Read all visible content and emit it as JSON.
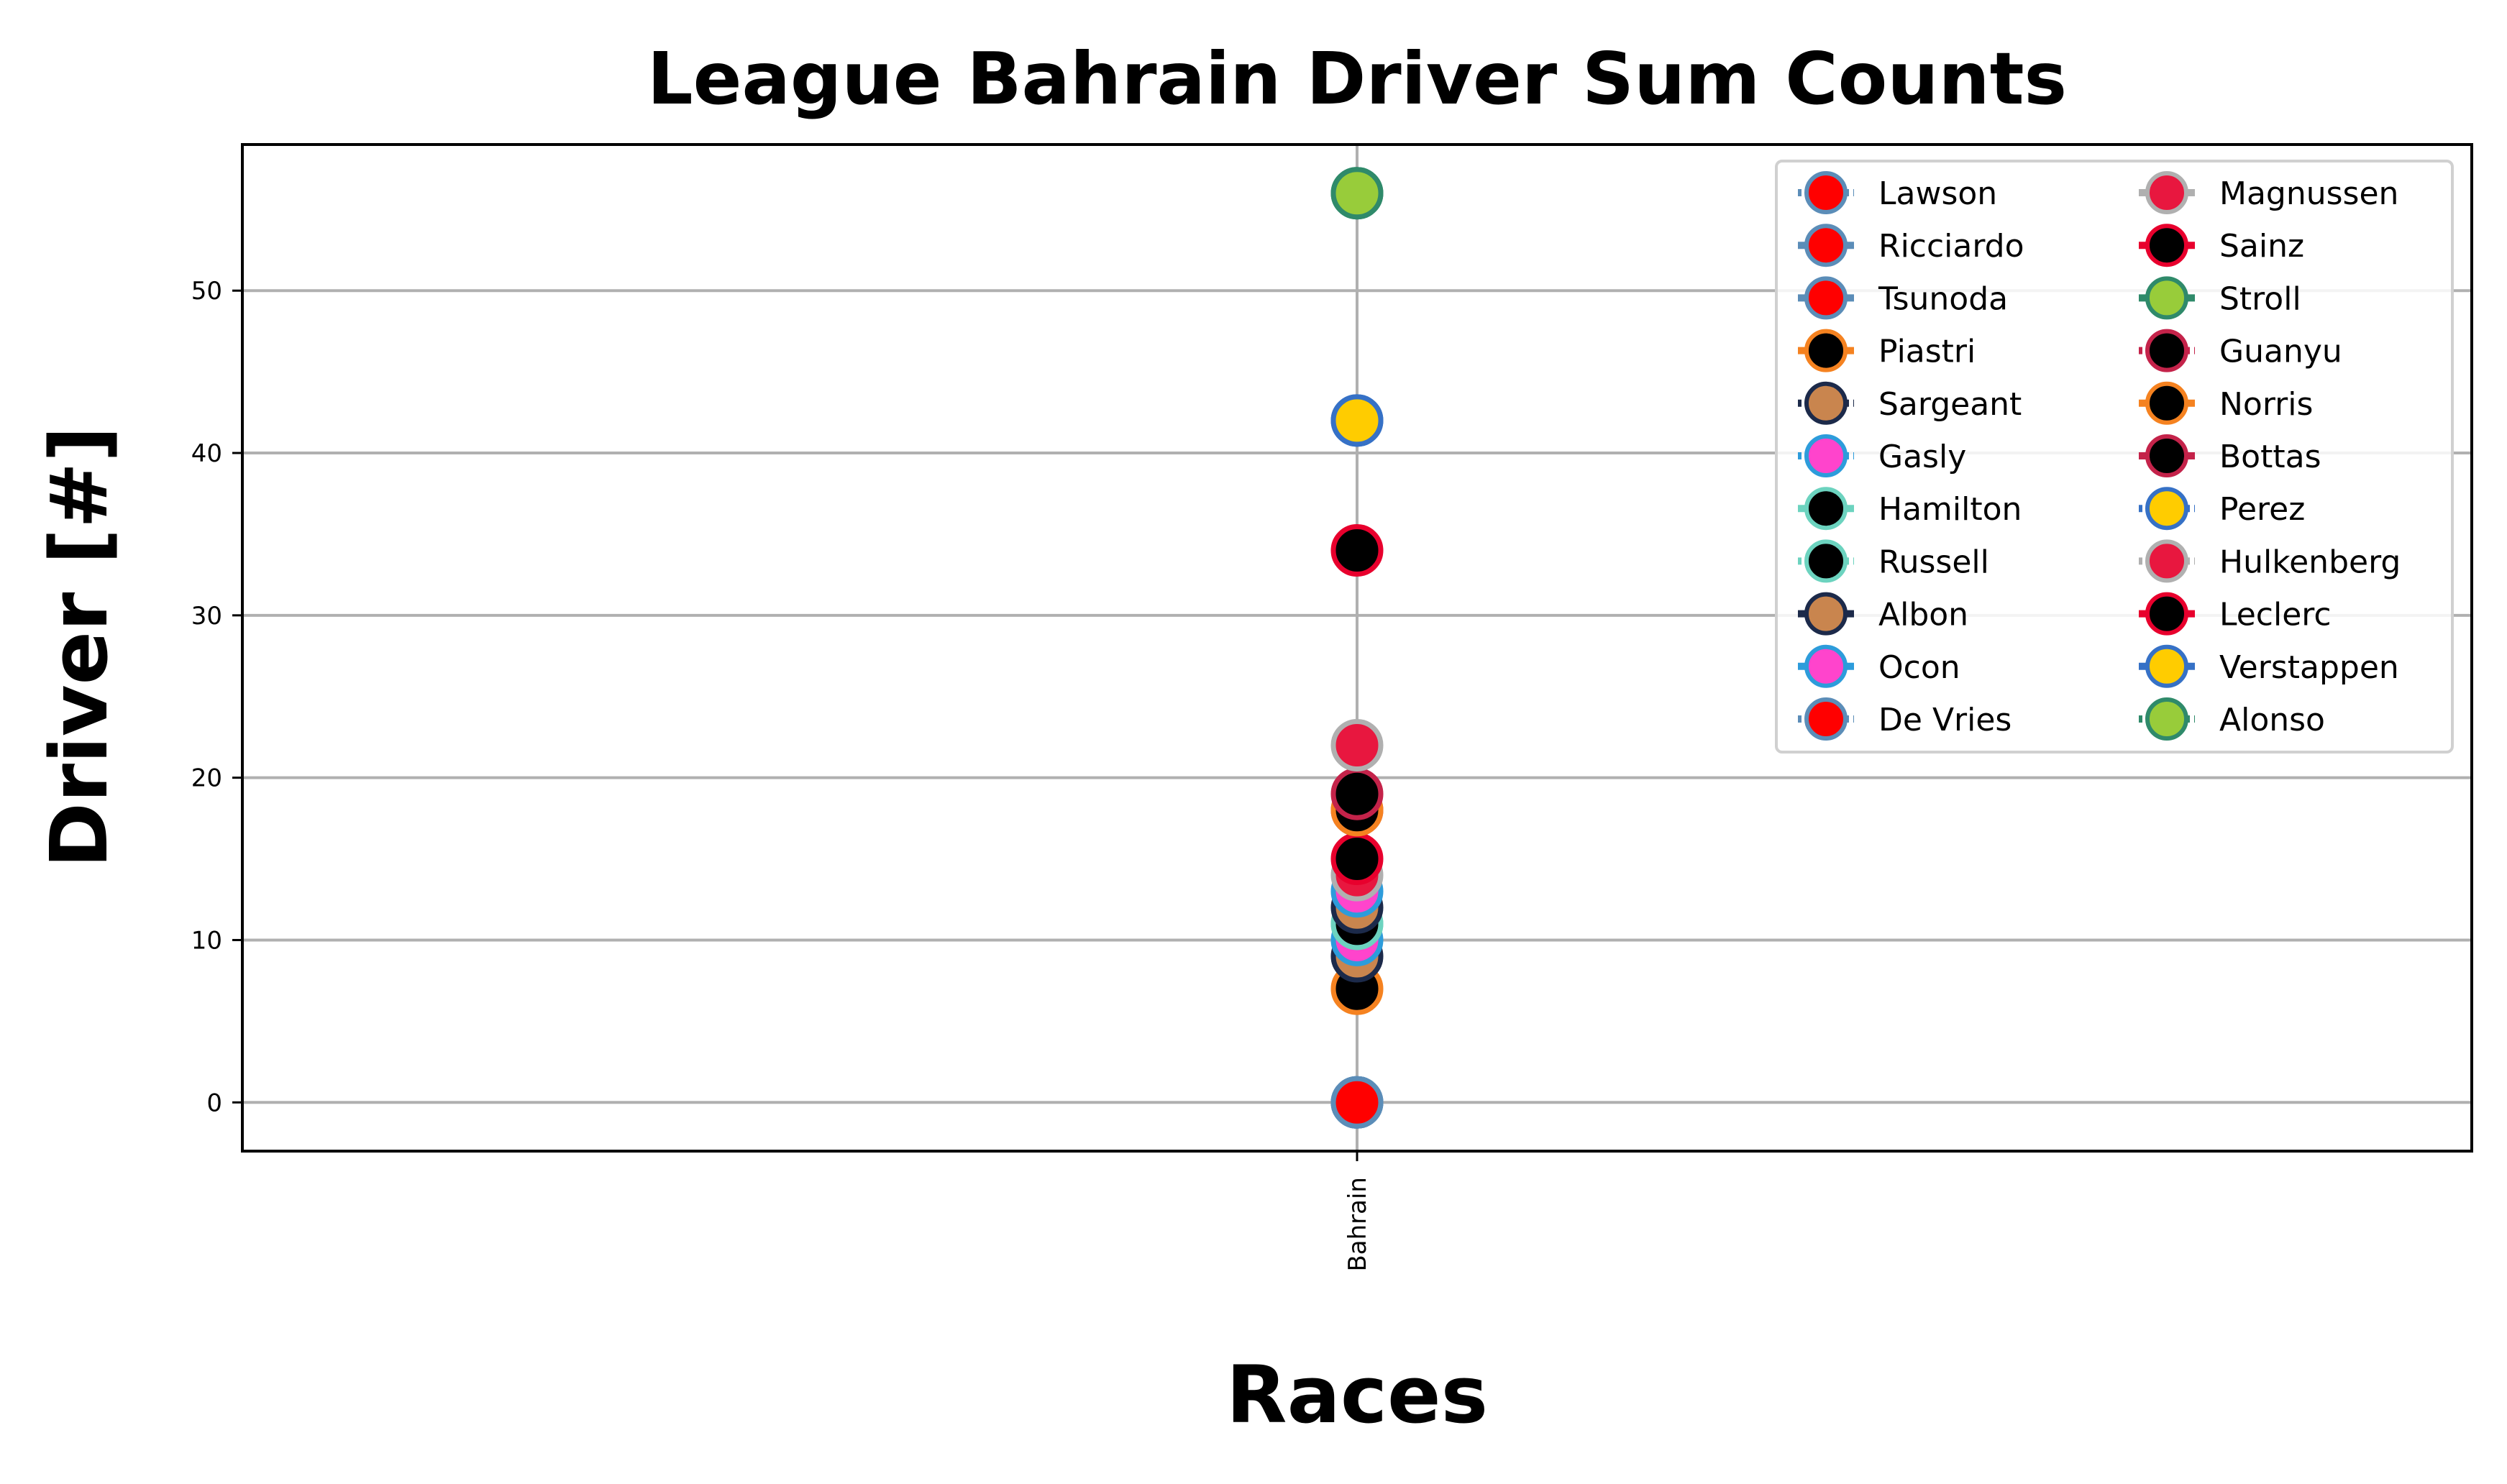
{
  "chart_data": {
    "type": "line",
    "title": "League Bahrain Driver Sum Counts",
    "xlabel": "Races",
    "ylabel": "Driver [#]",
    "categories": [
      "Bahrain"
    ],
    "ylim": [
      -3,
      59
    ],
    "yticks": [
      0,
      10,
      20,
      30,
      40,
      50
    ],
    "grid": true,
    "legend_position": "top-right",
    "legend_columns": 2,
    "series": [
      {
        "name": "Lawson",
        "values": [
          0
        ],
        "line": "#5b8db8",
        "edge": "#5b8db8",
        "fill": "#ff0000",
        "dash": "dotted"
      },
      {
        "name": "Ricciardo",
        "values": [
          0
        ],
        "line": "#5b8db8",
        "edge": "#5b8db8",
        "fill": "#ff0000",
        "dash": "dashed"
      },
      {
        "name": "Tsunoda",
        "values": [
          0
        ],
        "line": "#5b8db8",
        "edge": "#5b8db8",
        "fill": "#ff0000",
        "dash": "dashed"
      },
      {
        "name": "Piastri",
        "values": [
          7
        ],
        "line": "#f58220",
        "edge": "#f58220",
        "fill": "#000000",
        "dash": "dashed"
      },
      {
        "name": "Sargeant",
        "values": [
          9
        ],
        "line": "#1c2a4a",
        "edge": "#1c2a4a",
        "fill": "#c9854e",
        "dash": "dotted"
      },
      {
        "name": "Gasly",
        "values": [
          10
        ],
        "line": "#2d9cdb",
        "edge": "#2d9cdb",
        "fill": "#ff44cc",
        "dash": "dotted"
      },
      {
        "name": "Hamilton",
        "values": [
          11
        ],
        "line": "#6cd3bf",
        "edge": "#6cd3bf",
        "fill": "#000000",
        "dash": "solid"
      },
      {
        "name": "Russell",
        "values": [
          11
        ],
        "line": "#6cd3bf",
        "edge": "#6cd3bf",
        "fill": "#000000",
        "dash": "dotted"
      },
      {
        "name": "Albon",
        "values": [
          12
        ],
        "line": "#1c2a4a",
        "edge": "#1c2a4a",
        "fill": "#c9854e",
        "dash": "solid"
      },
      {
        "name": "Ocon",
        "values": [
          13
        ],
        "line": "#2d9cdb",
        "edge": "#2d9cdb",
        "fill": "#ff44cc",
        "dash": "solid"
      },
      {
        "name": "De Vries",
        "values": [
          0
        ],
        "line": "#5b8db8",
        "edge": "#5b8db8",
        "fill": "#ff0000",
        "dash": "dotted"
      },
      {
        "name": "Magnussen",
        "values": [
          14
        ],
        "line": "#b0b0b0",
        "edge": "#b0b0b0",
        "fill": "#e8173f",
        "dash": "solid"
      },
      {
        "name": "Sainz",
        "values": [
          15
        ],
        "line": "#e8002d",
        "edge": "#e8002d",
        "fill": "#000000",
        "dash": "dashed"
      },
      {
        "name": "Stroll",
        "values": [
          56
        ],
        "line": "#2f8a6a",
        "edge": "#2f8a6a",
        "fill": "#98cc3a",
        "dash": "solid"
      },
      {
        "name": "Guanyu",
        "values": [
          18
        ],
        "line": "#c4234a",
        "edge": "#c4234a",
        "fill": "#000000",
        "dash": "dotted"
      },
      {
        "name": "Norris",
        "values": [
          18
        ],
        "line": "#f58220",
        "edge": "#f58220",
        "fill": "#000000",
        "dash": "solid"
      },
      {
        "name": "Bottas",
        "values": [
          19
        ],
        "line": "#c4234a",
        "edge": "#c4234a",
        "fill": "#000000",
        "dash": "solid"
      },
      {
        "name": "Perez",
        "values": [
          42
        ],
        "line": "#3671c6",
        "edge": "#3671c6",
        "fill": "#ffcc00",
        "dash": "dotted"
      },
      {
        "name": "Hulkenberg",
        "values": [
          22
        ],
        "line": "#b0b0b0",
        "edge": "#b0b0b0",
        "fill": "#e8173f",
        "dash": "dotted"
      },
      {
        "name": "Leclerc",
        "values": [
          34
        ],
        "line": "#e8002d",
        "edge": "#e8002d",
        "fill": "#000000",
        "dash": "solid"
      },
      {
        "name": "Verstappen",
        "values": [
          42
        ],
        "line": "#3671c6",
        "edge": "#3671c6",
        "fill": "#ffcc00",
        "dash": "solid"
      },
      {
        "name": "Alonso",
        "values": [
          56
        ],
        "line": "#2f8a6a",
        "edge": "#2f8a6a",
        "fill": "#98cc3a",
        "dash": "dotted"
      }
    ]
  }
}
